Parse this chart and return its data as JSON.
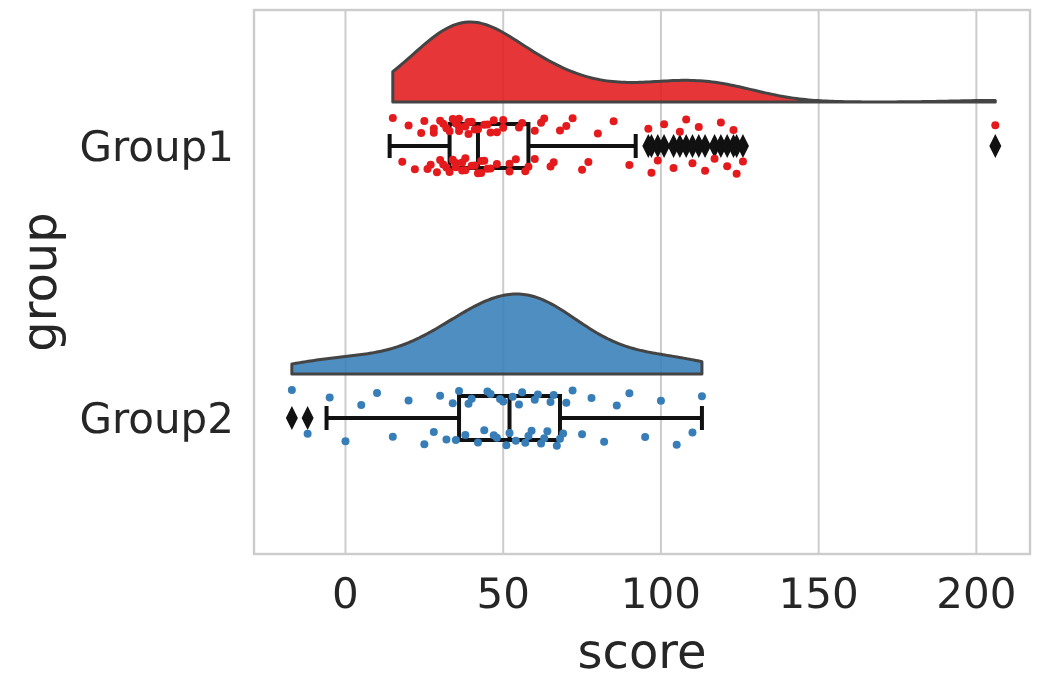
{
  "chart_data": {
    "type": "box",
    "orientation": "horizontal",
    "categories": [
      "Group1",
      "Group2"
    ],
    "xlabel": "score",
    "ylabel": "group",
    "xlim": [
      -29,
      217
    ],
    "xticks": [
      0,
      50,
      100,
      150,
      200
    ],
    "grid": "x",
    "boxes": [
      {
        "low": 14,
        "q1": 33,
        "median": 42,
        "q3": 58,
        "high": 92,
        "outliers": [
          96,
          97,
          99,
          101,
          104,
          106,
          108,
          110,
          112,
          114,
          117,
          119,
          121,
          123,
          124,
          126,
          206
        ]
      },
      {
        "low": -6,
        "q1": 36,
        "median": 52,
        "q3": 68,
        "high": 113,
        "outliers": [
          -17,
          -12
        ]
      }
    ],
    "series": [
      {
        "type": "scatter",
        "color": "#e41a1c",
        "x": [
          "Group1",
          "Group1",
          "Group1",
          "Group1",
          "Group1",
          "Group1",
          "Group1",
          "Group1",
          "Group1",
          "Group1",
          "Group1",
          "Group1",
          "Group1",
          "Group1",
          "Group1",
          "Group1",
          "Group1",
          "Group1",
          "Group1",
          "Group1",
          "Group1",
          "Group1",
          "Group1",
          "Group1",
          "Group1",
          "Group1",
          "Group1",
          "Group1",
          "Group1",
          "Group1",
          "Group1",
          "Group1",
          "Group1",
          "Group1",
          "Group1",
          "Group1",
          "Group1",
          "Group1",
          "Group1",
          "Group1",
          "Group1",
          "Group1",
          "Group1",
          "Group1",
          "Group1",
          "Group1",
          "Group1",
          "Group1",
          "Group1",
          "Group1",
          "Group1",
          "Group1",
          "Group1",
          "Group1",
          "Group1",
          "Group1",
          "Group1",
          "Group1",
          "Group1",
          "Group1",
          "Group1",
          "Group1",
          "Group1",
          "Group1",
          "Group1",
          "Group1",
          "Group1",
          "Group1",
          "Group1",
          "Group1",
          "Group1",
          "Group1",
          "Group1",
          "Group1",
          "Group1",
          "Group1",
          "Group1",
          "Group1",
          "Group1",
          "Group1",
          "Group1",
          "Group1",
          "Group1",
          "Group1",
          "Group1",
          "Group1",
          "Group1",
          "Group1",
          "Group1",
          "Group1",
          "Group1"
        ],
        "values": [
          15,
          18,
          20,
          22,
          24,
          25,
          27,
          28,
          29,
          30,
          31,
          32,
          33,
          34,
          35,
          36,
          37,
          38,
          39,
          40,
          41,
          42,
          43,
          44,
          45,
          46,
          47,
          48,
          50,
          52,
          54,
          56,
          58,
          60,
          63,
          66,
          70,
          75,
          80,
          85,
          90,
          96,
          97,
          99,
          101,
          104,
          106,
          108,
          110,
          112,
          114,
          117,
          119,
          121,
          123,
          124,
          126,
          206,
          26,
          28,
          30,
          31,
          32,
          33,
          34,
          35,
          35,
          36,
          36,
          37,
          38,
          38,
          39,
          40,
          41,
          42,
          43,
          44,
          45,
          46,
          48,
          50,
          52,
          55,
          57,
          60,
          62,
          65,
          68,
          72,
          77
        ]
      },
      {
        "type": "scatter",
        "color": "#377eb8",
        "x": [
          "Group2",
          "Group2",
          "Group2",
          "Group2",
          "Group2",
          "Group2",
          "Group2",
          "Group2",
          "Group2",
          "Group2",
          "Group2",
          "Group2",
          "Group2",
          "Group2",
          "Group2",
          "Group2",
          "Group2",
          "Group2",
          "Group2",
          "Group2",
          "Group2",
          "Group2",
          "Group2",
          "Group2",
          "Group2",
          "Group2",
          "Group2",
          "Group2",
          "Group2",
          "Group2",
          "Group2",
          "Group2",
          "Group2",
          "Group2",
          "Group2",
          "Group2",
          "Group2",
          "Group2",
          "Group2",
          "Group2",
          "Group2",
          "Group2",
          "Group2",
          "Group2",
          "Group2",
          "Group2",
          "Group2",
          "Group2",
          "Group2",
          "Group2",
          "Group2",
          "Group2",
          "Group2",
          "Group2",
          "Group2",
          "Group2",
          "Group2"
        ],
        "values": [
          -17,
          -12,
          -5,
          0,
          5,
          10,
          15,
          20,
          25,
          28,
          30,
          32,
          34,
          36,
          38,
          40,
          42,
          44,
          46,
          48,
          50,
          51,
          52,
          53,
          54,
          55,
          56,
          58,
          60,
          62,
          64,
          66,
          68,
          70,
          72,
          75,
          78,
          82,
          86,
          90,
          95,
          100,
          105,
          110,
          113,
          35,
          39,
          45,
          47,
          49,
          57,
          59,
          61,
          63,
          65,
          67,
          69
        ]
      }
    ]
  }
}
